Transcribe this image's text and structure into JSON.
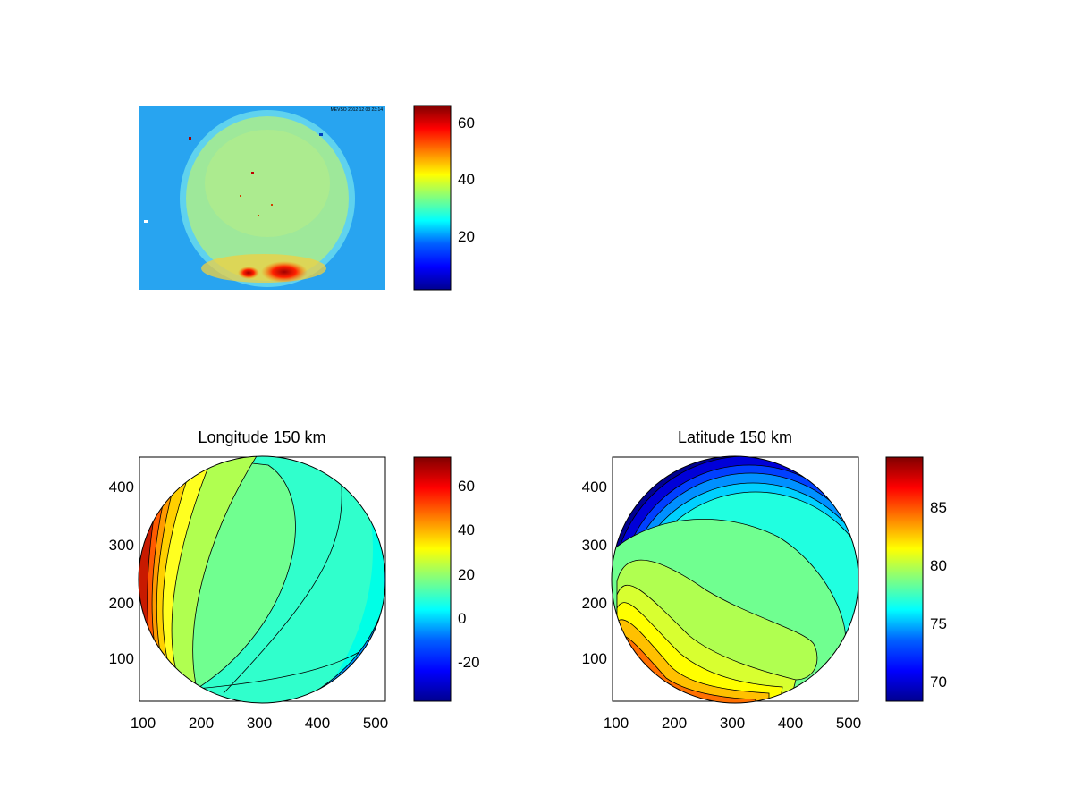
{
  "colors": {
    "background": "#ffffff",
    "jet": [
      "#00008f",
      "#0000ff",
      "#0080ff",
      "#00ffff",
      "#80ff80",
      "#ffff00",
      "#ff8000",
      "#ff0000",
      "#800000"
    ]
  },
  "chart_data": [
    {
      "type": "heatmap",
      "title": "",
      "content": "all-sky camera image: bright circular disk on a lighter background, with hot spots near the bottom edge",
      "colorbar": {
        "limits": [
          1,
          65
        ],
        "ticks": [
          "20",
          "40",
          "60"
        ]
      },
      "overlay_text": "MEVSO 2012 12 03 23:14"
    },
    {
      "type": "heatmap",
      "subtype": "filled-contour",
      "title": "Longitude 150 km",
      "xlim": [
        100,
        525
      ],
      "ylim": [
        25,
        445
      ],
      "xticks": [
        "100",
        "200",
        "300",
        "400",
        "500"
      ],
      "yticks": [
        "100",
        "200",
        "300",
        "400"
      ],
      "colorbar": {
        "limits": [
          -37,
          72
        ],
        "ticks": [
          "-20",
          "0",
          "20",
          "40",
          "60"
        ]
      }
    },
    {
      "type": "heatmap",
      "subtype": "filled-contour",
      "title": "Latitude 150 km",
      "xlim": [
        100,
        525
      ],
      "ylim": [
        25,
        445
      ],
      "xticks": [
        "100",
        "200",
        "300",
        "400",
        "500"
      ],
      "yticks": [
        "100",
        "200",
        "300",
        "400"
      ],
      "colorbar": {
        "limits": [
          68,
          89
        ],
        "ticks": [
          "70",
          "75",
          "80",
          "85"
        ]
      }
    }
  ]
}
